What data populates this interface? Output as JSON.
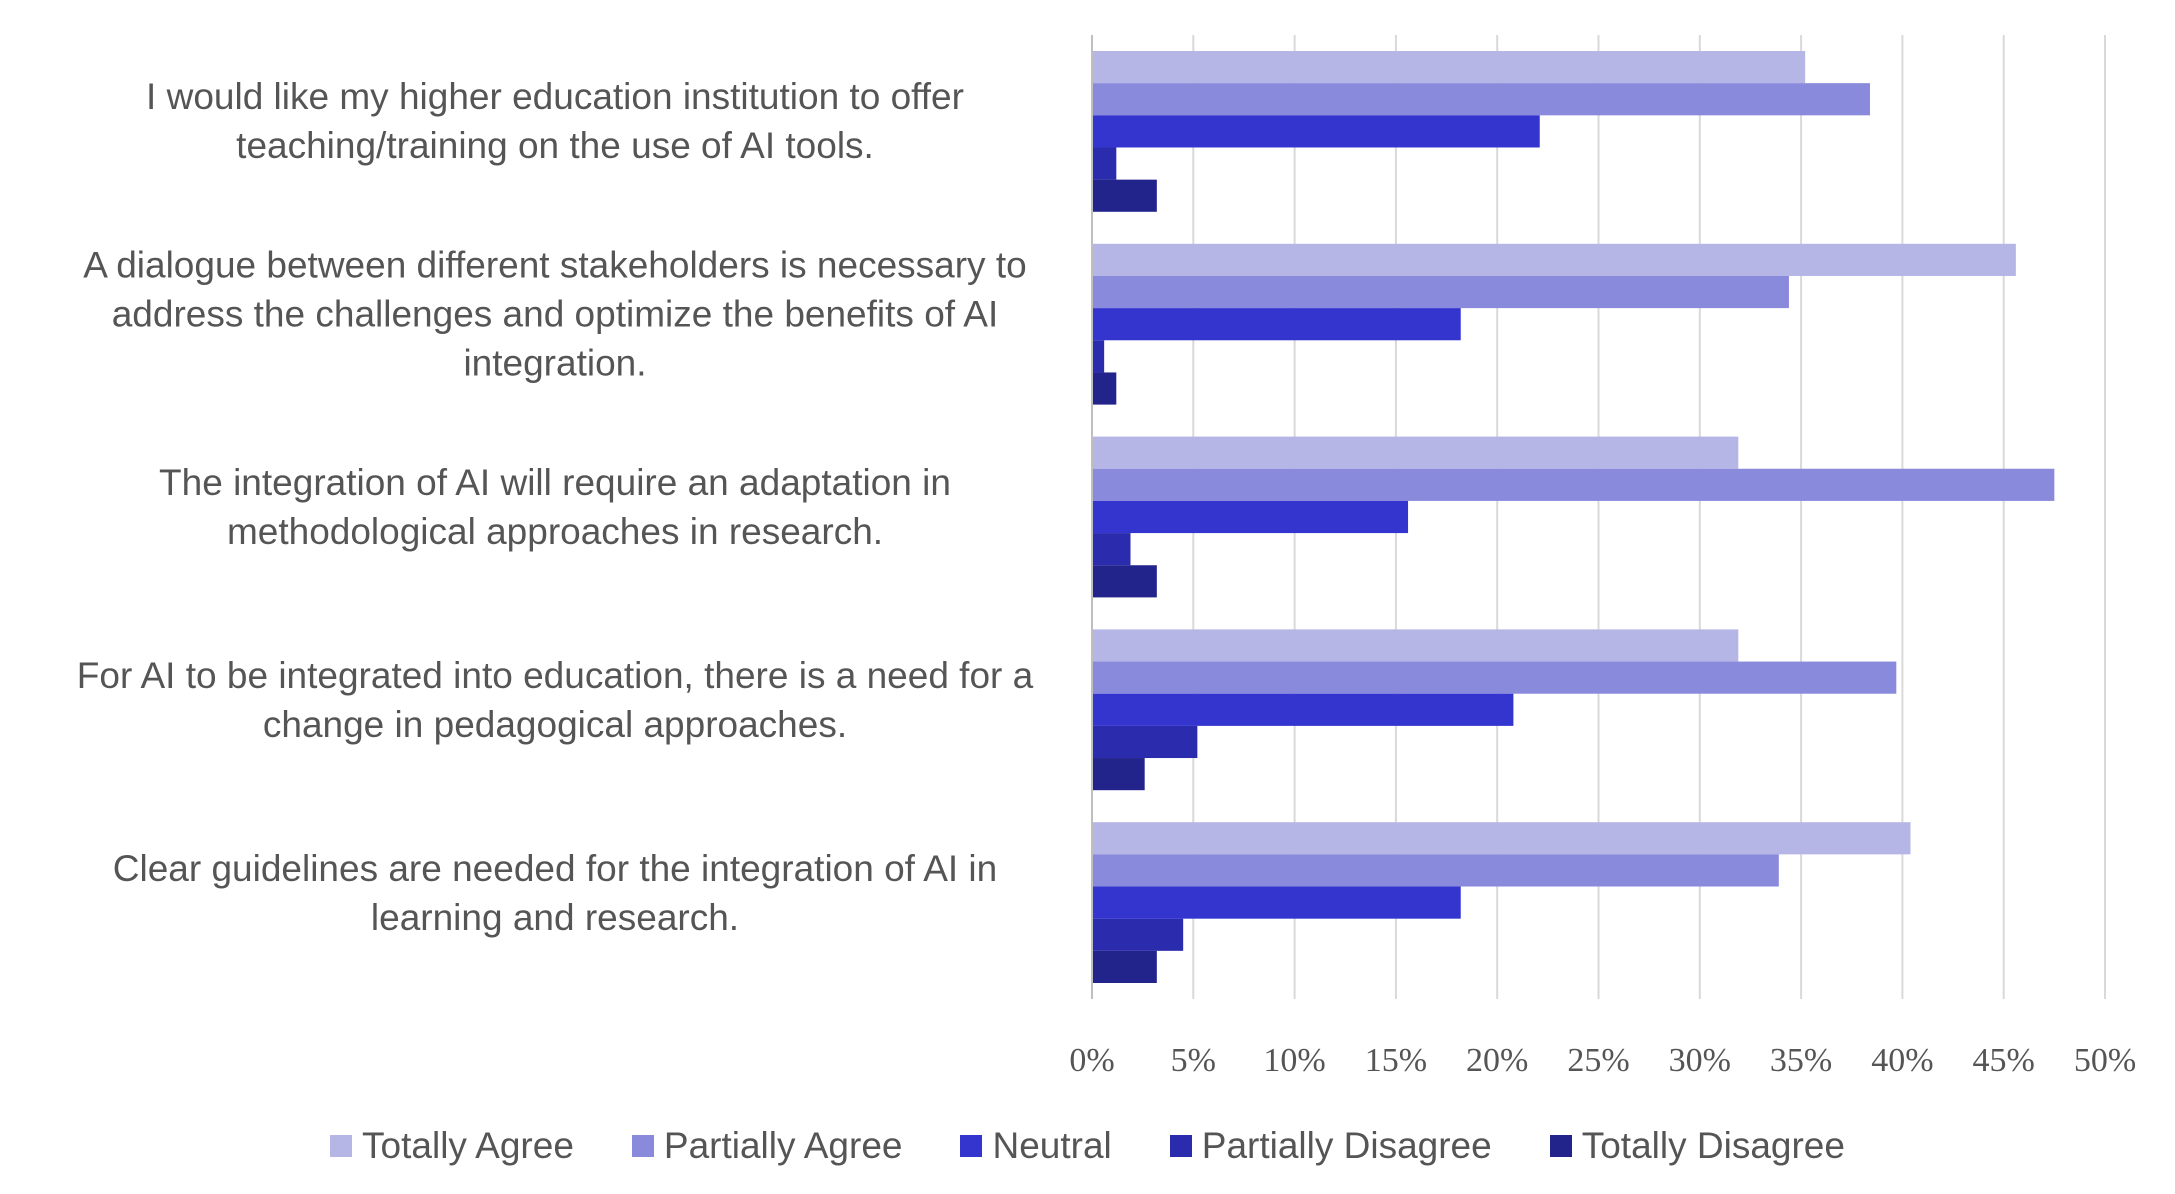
{
  "chart_data": {
    "type": "bar",
    "orientation": "horizontal",
    "categories": [
      "I would like my higher education institution to offer teaching/training on the use of AI tools.",
      "A dialogue between different stakeholders is necessary to address the challenges and optimize the benefits of AI integration.",
      "The integration of AI will require an adaptation in methodological approaches in research.",
      "For AI to be integrated into education, there is a need for a change in pedagogical approaches.",
      "Clear guidelines are needed for the integration of AI in learning and research."
    ],
    "series": [
      {
        "name": "Totally Agree",
        "color": "#b5b5e6",
        "values": [
          35.2,
          45.6,
          31.9,
          31.9,
          40.4
        ]
      },
      {
        "name": "Partially Agree",
        "color": "#8a8add",
        "values": [
          38.4,
          34.4,
          47.5,
          39.7,
          33.9
        ]
      },
      {
        "name": "Neutral",
        "color": "#3434cf",
        "values": [
          22.1,
          18.2,
          15.6,
          20.8,
          18.2
        ]
      },
      {
        "name": "Partially Disagree",
        "color": "#2b2bae",
        "values": [
          1.2,
          0.6,
          1.9,
          5.2,
          4.5
        ]
      },
      {
        "name": "Totally Disagree",
        "color": "#23238c",
        "values": [
          3.2,
          1.2,
          3.2,
          2.6,
          3.2
        ]
      }
    ],
    "xlim": [
      0,
      50
    ],
    "xticks": [
      {
        "value": 0,
        "label": "0%"
      },
      {
        "value": 5,
        "label": "5%"
      },
      {
        "value": 10,
        "label": "10%"
      },
      {
        "value": 15,
        "label": "15%"
      },
      {
        "value": 20,
        "label": "20%"
      },
      {
        "value": 25,
        "label": "25%"
      },
      {
        "value": 30,
        "label": "30%"
      },
      {
        "value": 35,
        "label": "35%"
      },
      {
        "value": 40,
        "label": "40%"
      },
      {
        "value": 45,
        "label": "45%"
      },
      {
        "value": 50,
        "label": "50%"
      }
    ],
    "grid": true,
    "legend": "bottom"
  }
}
